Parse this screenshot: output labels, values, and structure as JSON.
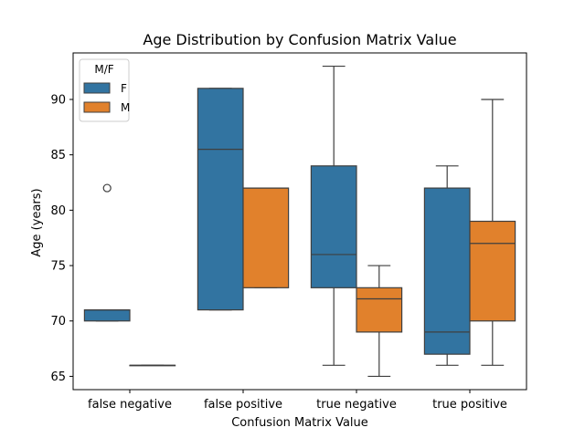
{
  "chart_data": {
    "type": "box",
    "title": "Age Distribution by Confusion Matrix Value",
    "xlabel": "Confusion Matrix Value",
    "ylabel": "Age (years)",
    "categories": [
      "false negative",
      "false positive",
      "true negative",
      "true positive"
    ],
    "ylim": [
      63.8,
      94.2
    ],
    "yticks": [
      65,
      70,
      75,
      80,
      85,
      90
    ],
    "grid": false,
    "legend": {
      "title": "M/F",
      "placement": "top-left",
      "entries": [
        {
          "name": "F",
          "color": "#3274a1"
        },
        {
          "name": "M",
          "color": "#e1812c"
        }
      ]
    },
    "series": [
      {
        "name": "F",
        "color": "#3274a1",
        "boxes": [
          {
            "category": "false negative",
            "whisker_low": 70,
            "q1": 70,
            "median": 71,
            "q3": 71,
            "whisker_high": 71,
            "outliers": [
              82
            ]
          },
          {
            "category": "false positive",
            "whisker_low": 71,
            "q1": 71,
            "median": 85.5,
            "q3": 91,
            "whisker_high": 91,
            "outliers": []
          },
          {
            "category": "true negative",
            "whisker_low": 66,
            "q1": 73,
            "median": 76,
            "q3": 84,
            "whisker_high": 93,
            "outliers": []
          },
          {
            "category": "true positive",
            "whisker_low": 66,
            "q1": 67,
            "median": 69,
            "q3": 82,
            "whisker_high": 84,
            "outliers": []
          }
        ]
      },
      {
        "name": "M",
        "color": "#e1812c",
        "boxes": [
          {
            "category": "false negative",
            "whisker_low": 66,
            "q1": 66,
            "median": 66,
            "q3": 66,
            "whisker_high": 66,
            "outliers": []
          },
          {
            "category": "false positive",
            "whisker_low": 73,
            "q1": 73,
            "median": 82,
            "q3": 82,
            "whisker_high": 82,
            "outliers": []
          },
          {
            "category": "true negative",
            "whisker_low": 65,
            "q1": 69,
            "median": 72,
            "q3": 73,
            "whisker_high": 75,
            "outliers": []
          },
          {
            "category": "true positive",
            "whisker_low": 66,
            "q1": 70,
            "median": 77,
            "q3": 79,
            "whisker_high": 90,
            "outliers": []
          }
        ]
      }
    ]
  }
}
